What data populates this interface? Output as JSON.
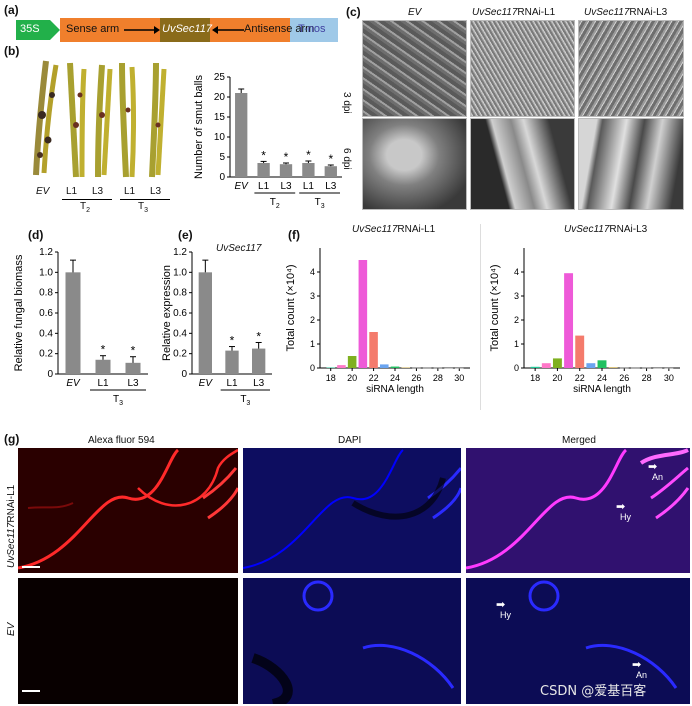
{
  "panel_a": {
    "label": "(a)",
    "promoter": "35S",
    "sense": "Sense arm",
    "gene": "UvSec117",
    "antisense": "Antisense arm",
    "terminator": "T-nos",
    "colors": {
      "promoter": "#22b04a",
      "arm": "#f07f2c",
      "gene": "#8a6b1a",
      "terminator": "#9fc9e8"
    }
  },
  "panel_b": {
    "label": "(b)",
    "photo_labels": [
      "EV",
      "L1",
      "L3",
      "L1",
      "L3"
    ],
    "group_t2": "T",
    "group_t2_sub": "2",
    "group_t3": "T",
    "group_t3_sub": "3"
  },
  "panel_c": {
    "label": "(c)",
    "columns": [
      "EV",
      "UvSec117RNAi-L1",
      "UvSec117RNAi-L3"
    ],
    "col_gene": "UvSec117",
    "col_suffix": [
      "RNAi-L1",
      "RNAi-L3"
    ],
    "rows": [
      "3 dpi",
      "6 dpi"
    ]
  },
  "panel_d": {
    "label": "(d)"
  },
  "panel_e": {
    "label": "(e)",
    "gene": "UvSec117"
  },
  "panel_f": {
    "label": "(f)",
    "titles_gene": "UvSec117",
    "titles_suffix": [
      "RNAi-L1",
      "RNAi-L3"
    ]
  },
  "panel_g": {
    "label": "(g)",
    "columns": [
      "Alexa fluor 594",
      "DAPI",
      "Merged"
    ],
    "row1": "UvSec117RNAi-L1",
    "row1_gene": "UvSec117",
    "row1_suffix": "RNAi-L1",
    "row2": "EV",
    "arrows": {
      "an": "An",
      "hy": "Hy"
    }
  },
  "watermark": "CSDN @爱基百客",
  "chart_data": [
    {
      "id": "b-bar",
      "type": "bar",
      "categories": [
        "EV",
        "L1",
        "L3",
        "L1",
        "L3"
      ],
      "values": [
        21,
        3.5,
        3.2,
        3.5,
        2.7
      ],
      "errors": [
        1,
        0.4,
        0.3,
        0.5,
        0.3
      ],
      "significance": [
        "",
        "*",
        "*",
        "*",
        "*"
      ],
      "groups": [
        {
          "name": "T2",
          "members": [
            1,
            2
          ]
        },
        {
          "name": "T3",
          "members": [
            3,
            4
          ]
        }
      ],
      "ylabel": "Number of smut balls",
      "yticks": [
        "0",
        "5",
        "10",
        "15",
        "20",
        "25"
      ],
      "ylim": [
        0,
        25
      ]
    },
    {
      "id": "d-bar",
      "type": "bar",
      "categories": [
        "EV",
        "L1",
        "L3"
      ],
      "values": [
        1.0,
        0.14,
        0.11
      ],
      "errors": [
        0.12,
        0.04,
        0.06
      ],
      "significance": [
        "",
        "*",
        "*"
      ],
      "groups": [
        {
          "name": "T3",
          "members": [
            1,
            2
          ]
        }
      ],
      "ylabel": "Relative fungal biomass",
      "yticks": [
        "0",
        "0.2",
        "0.4",
        "0.6",
        "0.8",
        "1.0",
        "1.2"
      ],
      "ylim": [
        0,
        1.2
      ]
    },
    {
      "id": "e-bar",
      "type": "bar",
      "categories": [
        "EV",
        "L1",
        "L3"
      ],
      "values": [
        1.0,
        0.23,
        0.25
      ],
      "errors": [
        0.12,
        0.04,
        0.06
      ],
      "significance": [
        "",
        "*",
        "*"
      ],
      "groups": [
        {
          "name": "T3",
          "members": [
            1,
            2
          ]
        }
      ],
      "ylabel": "Relative expression",
      "yticks": [
        "0",
        "0.2",
        "0.4",
        "0.6",
        "0.8",
        "1.0",
        "1.2"
      ],
      "ylim": [
        0,
        1.2
      ]
    },
    {
      "id": "f1-bar",
      "type": "bar",
      "title": "UvSec117RNAi-L1",
      "x": [
        18,
        19,
        20,
        21,
        22,
        23,
        24,
        25,
        26,
        27,
        28,
        29,
        30
      ],
      "values": [
        0.02,
        0.12,
        0.5,
        4.5,
        1.5,
        0.15,
        0.06,
        0.02,
        0.01,
        0.01,
        0.01,
        0.005,
        0.005
      ],
      "colors": [
        "#20c997",
        "#ff77c8",
        "#7fb020",
        "#ee5ad8",
        "#f47b6c",
        "#6aa4f0",
        "#20c060",
        "#d0b050",
        "#c0c0c0",
        "#c0c0c0",
        "#c0c0c0",
        "#c0c0c0",
        "#c0c0c0"
      ],
      "xlabel": "siRNA length",
      "ylabel": "Total count (×10⁴)",
      "xticks": [
        "18",
        "20",
        "22",
        "24",
        "26",
        "28",
        "30"
      ],
      "yticks": [
        "0",
        "1",
        "2",
        "3",
        "4"
      ],
      "ylim": [
        0,
        5
      ]
    },
    {
      "id": "f2-bar",
      "type": "bar",
      "title": "UvSec117RNAi-L3",
      "x": [
        18,
        19,
        20,
        21,
        22,
        23,
        24,
        25,
        26,
        27,
        28,
        29,
        30
      ],
      "values": [
        0.05,
        0.2,
        0.4,
        3.95,
        1.35,
        0.2,
        0.32,
        0.03,
        0.01,
        0.01,
        0.01,
        0.005,
        0.005
      ],
      "colors": [
        "#20c997",
        "#ff77c8",
        "#7fb020",
        "#ee5ad8",
        "#f47b6c",
        "#6aa4f0",
        "#20c060",
        "#d0b050",
        "#c0c0c0",
        "#c0c0c0",
        "#c0c0c0",
        "#c0c0c0",
        "#c0c0c0"
      ],
      "xlabel": "siRNA length",
      "ylabel": "Total count (×10⁴)",
      "xticks": [
        "18",
        "20",
        "22",
        "24",
        "26",
        "28",
        "30"
      ],
      "yticks": [
        "0",
        "1",
        "2",
        "3",
        "4"
      ],
      "ylim": [
        0,
        5
      ]
    }
  ]
}
